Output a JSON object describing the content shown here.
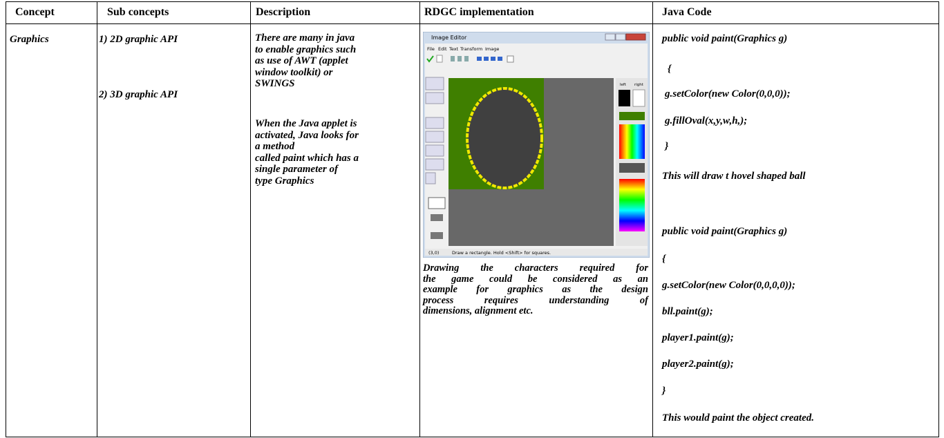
{
  "table": {
    "header": [
      "Concept",
      "Sub concepts",
      "Description",
      "RDGC implementation",
      "Java Code"
    ],
    "rows": [
      {
        "concept": "Graphics",
        "sub_concepts": [
          "1) 2D graphic API",
          "2) 3D graphic API"
        ],
        "description": [
          [
            "There are many in java",
            "to enable graphics such",
            "as use of AWT (applet",
            "window toolkit) or",
            "SWINGS"
          ],
          [
            "When the Java applet is",
            "activated, Java looks for",
            "a method",
            "called paint which has a",
            "single parameter of",
            "type Graphics"
          ]
        ],
        "rdgc": {
          "screenshot": {
            "title": "Image Editor",
            "menu": [
              "File",
              "Edit",
              "Text",
              "Transform",
              "Image"
            ],
            "palette_labels": [
              "left",
              "right"
            ],
            "status": [
              "(3,0)",
              "Draw a rectangle. Hold <Shift> for squares."
            ]
          },
          "caption": [
            "Drawing the characters required for",
            "the game could be considered as an",
            "example for graphics as the design",
            "process requires understanding of",
            "dimensions, alignment etc."
          ]
        },
        "java_code": [
          "public void paint(Graphics g)",
          "{",
          "g.setColor(new Color(0,0,0));",
          "g.fillOval(x,y,w,h,);",
          "}",
          "This will draw t hovel shaped ball",
          "public void paint(Graphics g)",
          "{",
          "g.setColor(new Color(0,0,0,0));",
          "bll.paint(g);",
          "player1.paint(g);",
          "player2.paint(g);",
          "}",
          "This would paint the object created."
        ]
      }
    ]
  }
}
